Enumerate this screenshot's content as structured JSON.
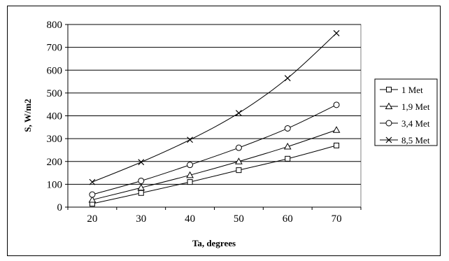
{
  "chart_data": {
    "type": "line",
    "xlabel": "Ta, degrees",
    "ylabel": "S, W/m2",
    "x": [
      20,
      30,
      40,
      50,
      60,
      70
    ],
    "xlim": [
      15,
      75
    ],
    "ylim": [
      0,
      800
    ],
    "yticks": [
      0,
      100,
      200,
      300,
      400,
      500,
      600,
      700,
      800
    ],
    "xticks": [
      20,
      30,
      40,
      50,
      60,
      70
    ],
    "grid": "horizontal",
    "legend_position": "right",
    "series": [
      {
        "name": "1 Met",
        "marker": "square",
        "values": [
          15,
          62,
          110,
          162,
          212,
          270
        ]
      },
      {
        "name": "1,9 Met",
        "marker": "triangle",
        "values": [
          32,
          85,
          140,
          200,
          265,
          338
        ]
      },
      {
        "name": "3,4 Met",
        "marker": "circle",
        "values": [
          55,
          115,
          185,
          260,
          345,
          448
        ]
      },
      {
        "name": "8,5 Met",
        "marker": "x",
        "values": [
          110,
          197,
          295,
          412,
          565,
          762
        ]
      }
    ],
    "colors": {
      "line": "#000000",
      "plot_border": "#808080",
      "grid": "#000000"
    }
  }
}
